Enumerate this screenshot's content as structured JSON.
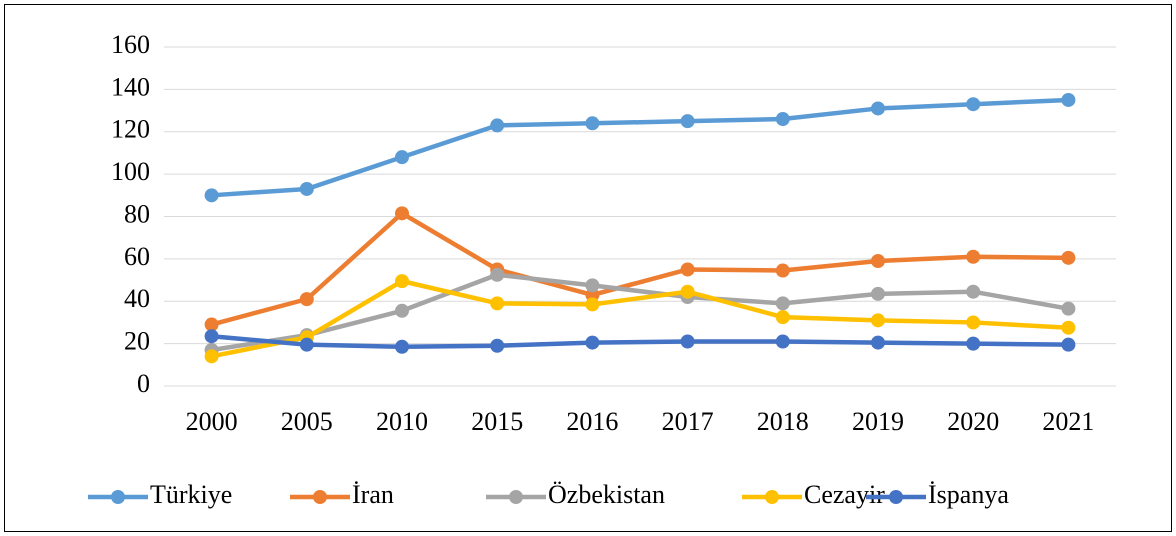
{
  "chart_data": {
    "type": "line",
    "categories": [
      "2000",
      "2005",
      "2010",
      "2015",
      "2016",
      "2017",
      "2018",
      "2019",
      "2020",
      "2021"
    ],
    "series": [
      {
        "name": "Türkiye",
        "color": "#5b9bd5",
        "values": [
          90,
          93,
          108,
          123,
          124,
          125,
          126,
          131,
          133,
          135
        ]
      },
      {
        "name": "İran",
        "color": "#ed7d31",
        "values": [
          29,
          41,
          81.5,
          55,
          43,
          55,
          54.5,
          59,
          61,
          60.5
        ]
      },
      {
        "name": "Özbekistan",
        "color": "#a5a5a5",
        "values": [
          17,
          24,
          35.5,
          52.5,
          47.5,
          42,
          39,
          43.5,
          44.5,
          36.5
        ]
      },
      {
        "name": "Cezayir",
        "color": "#ffc000",
        "values": [
          14,
          23,
          49.5,
          39,
          38.5,
          44.5,
          32.5,
          31,
          30,
          27.5
        ]
      },
      {
        "name": "İspanya",
        "color": "#4472c4",
        "values": [
          23.5,
          19.5,
          18.5,
          19,
          20.5,
          21,
          21,
          20.5,
          20,
          19.5
        ]
      }
    ],
    "ylim": [
      0,
      160
    ],
    "yticks": [
      0,
      20,
      40,
      60,
      80,
      100,
      120,
      140,
      160
    ],
    "grid": true,
    "legend": "bottom"
  }
}
